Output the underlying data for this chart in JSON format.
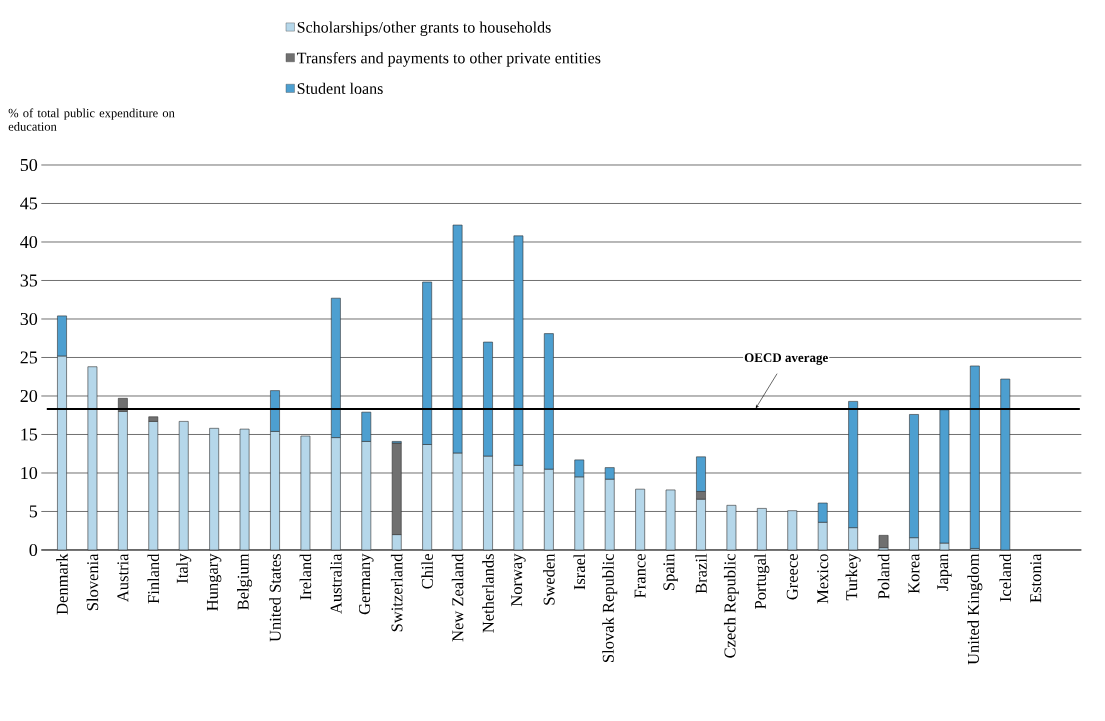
{
  "chart_data": {
    "type": "bar",
    "stacked": true,
    "ylabel": "% of total public expenditure on education",
    "categories": [
      "Denmark",
      "Slovenia",
      "Austria",
      "Finland",
      "Italy",
      "Hungary",
      "Belgium",
      "United States",
      "Ireland",
      "Australia",
      "Germany",
      "Switzerland",
      "Chile",
      "New Zealand",
      "Netherlands",
      "Norway",
      "Sweden",
      "Israel",
      "Slovak Republic",
      "France",
      "Spain",
      "Brazil",
      "Czech Republic",
      "Portugal",
      "Greece",
      "Mexico",
      "Turkey",
      "Poland",
      "Korea",
      "Japan",
      "United Kingdom",
      "Iceland",
      "Estonia"
    ],
    "series": [
      {
        "name": "Scholarships/other grants to households",
        "color": "#b5d7ea",
        "values": [
          25.2,
          23.8,
          18.0,
          16.7,
          16.7,
          15.8,
          15.7,
          15.4,
          14.8,
          14.6,
          14.1,
          2.0,
          13.7,
          12.6,
          12.2,
          11.0,
          10.5,
          9.5,
          9.2,
          7.9,
          7.8,
          6.6,
          5.8,
          5.4,
          5.1,
          3.6,
          2.9,
          0.3,
          1.6,
          0.9,
          0.2,
          null,
          null
        ]
      },
      {
        "name": "Transfers and payments to other private entities",
        "color": "#707070",
        "values": [
          null,
          null,
          1.7,
          0.6,
          null,
          null,
          null,
          null,
          null,
          null,
          null,
          11.9,
          null,
          null,
          null,
          null,
          null,
          null,
          null,
          null,
          null,
          1.0,
          null,
          null,
          null,
          null,
          null,
          1.6,
          null,
          null,
          null,
          null,
          null
        ]
      },
      {
        "name": "Student loans",
        "color": "#4d9fd0",
        "values": [
          5.2,
          null,
          null,
          null,
          null,
          null,
          null,
          5.3,
          null,
          18.1,
          3.8,
          0.2,
          21.1,
          29.6,
          14.8,
          29.8,
          17.6,
          2.2,
          1.5,
          null,
          null,
          4.5,
          null,
          null,
          null,
          2.5,
          16.4,
          null,
          16.0,
          17.3,
          23.7,
          22.2,
          null
        ]
      }
    ],
    "ylim": [
      0,
      50
    ],
    "yticks": [
      0,
      5,
      10,
      15,
      20,
      25,
      30,
      35,
      40,
      45,
      50
    ],
    "grid": "y",
    "legend": "top",
    "ref_lines": [
      {
        "axis": "y",
        "value": 18.3,
        "label": "OECD average",
        "color": "#000000"
      }
    ]
  }
}
